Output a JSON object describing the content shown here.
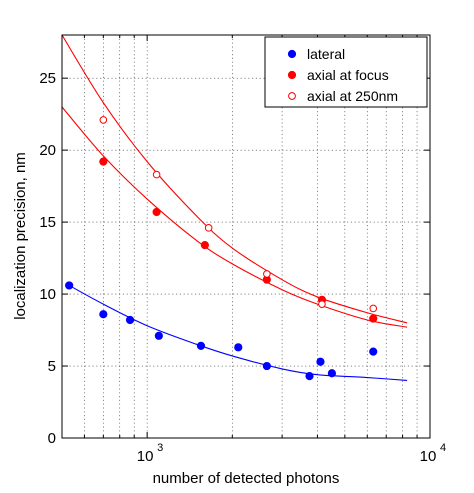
{
  "chart_data": {
    "type": "scatter",
    "xlabel": "number of detected photons",
    "ylabel": "localization precision, nm",
    "xscale": "log",
    "xlim": [
      500,
      10000
    ],
    "ylim": [
      0,
      28
    ],
    "x_ticks": [
      {
        "value": 1000,
        "base": "10",
        "exp": "3"
      },
      {
        "value": 10000,
        "base": "10",
        "exp": "4"
      }
    ],
    "y_ticks": [
      0,
      5,
      10,
      15,
      20,
      25
    ],
    "grid": true,
    "legend_position": "top-right",
    "series": [
      {
        "name": "lateral",
        "color": "#0000ff",
        "marker": "filled-circle",
        "points": [
          {
            "x": 530,
            "y": 10.6
          },
          {
            "x": 700,
            "y": 8.6
          },
          {
            "x": 870,
            "y": 8.2
          },
          {
            "x": 1100,
            "y": 7.1
          },
          {
            "x": 1550,
            "y": 6.4
          },
          {
            "x": 2100,
            "y": 6.3
          },
          {
            "x": 2650,
            "y": 5.0
          },
          {
            "x": 3750,
            "y": 4.3
          },
          {
            "x": 4100,
            "y": 5.3
          },
          {
            "x": 4500,
            "y": 4.5
          },
          {
            "x": 6300,
            "y": 6.0
          }
        ],
        "fit": [
          {
            "x": 530,
            "y": 10.6
          },
          {
            "x": 700,
            "y": 9.3
          },
          {
            "x": 1000,
            "y": 7.8
          },
          {
            "x": 1500,
            "y": 6.5
          },
          {
            "x": 2000,
            "y": 5.7
          },
          {
            "x": 3000,
            "y": 4.8
          },
          {
            "x": 4000,
            "y": 4.4
          },
          {
            "x": 6000,
            "y": 4.2
          },
          {
            "x": 8300,
            "y": 4.0
          }
        ]
      },
      {
        "name": "axial at focus",
        "color": "#ff0000",
        "marker": "filled-circle",
        "points": [
          {
            "x": 700,
            "y": 19.2
          },
          {
            "x": 1080,
            "y": 15.7
          },
          {
            "x": 1600,
            "y": 13.4
          },
          {
            "x": 2650,
            "y": 11.0
          },
          {
            "x": 4150,
            "y": 9.6
          },
          {
            "x": 6300,
            "y": 8.3
          }
        ],
        "fit": [
          {
            "x": 500,
            "y": 23.0
          },
          {
            "x": 700,
            "y": 19.6
          },
          {
            "x": 1000,
            "y": 16.6
          },
          {
            "x": 1500,
            "y": 13.7
          },
          {
            "x": 2000,
            "y": 12.1
          },
          {
            "x": 3000,
            "y": 10.3
          },
          {
            "x": 4000,
            "y": 9.3
          },
          {
            "x": 6000,
            "y": 8.2
          },
          {
            "x": 8300,
            "y": 7.7
          }
        ]
      },
      {
        "name": "axial at 250nm",
        "color": "#ff0000",
        "marker": "open-circle",
        "points": [
          {
            "x": 700,
            "y": 22.1
          },
          {
            "x": 1080,
            "y": 18.3
          },
          {
            "x": 1650,
            "y": 14.6
          },
          {
            "x": 2650,
            "y": 11.4
          },
          {
            "x": 4150,
            "y": 9.3
          },
          {
            "x": 6300,
            "y": 9.0
          }
        ],
        "fit": [
          {
            "x": 500,
            "y": 28.0
          },
          {
            "x": 700,
            "y": 23.3
          },
          {
            "x": 1000,
            "y": 19.2
          },
          {
            "x": 1500,
            "y": 15.4
          },
          {
            "x": 2000,
            "y": 13.2
          },
          {
            "x": 3000,
            "y": 11.0
          },
          {
            "x": 4000,
            "y": 9.8
          },
          {
            "x": 6000,
            "y": 8.7
          },
          {
            "x": 8300,
            "y": 8.0
          }
        ]
      }
    ]
  }
}
